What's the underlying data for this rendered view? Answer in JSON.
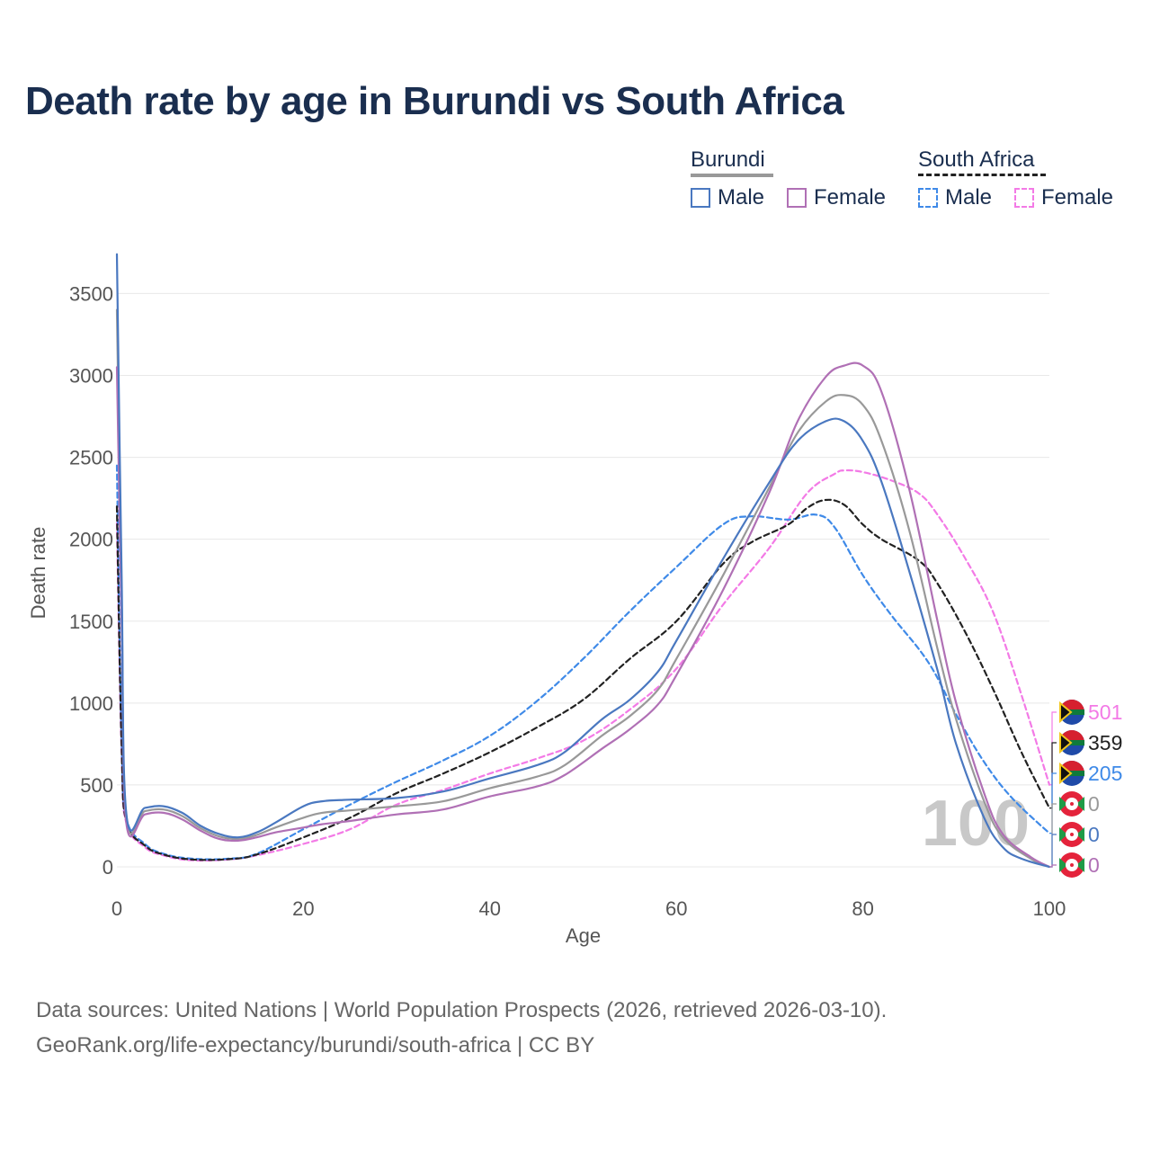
{
  "title": "Death rate by age in Burundi vs South Africa",
  "legend": {
    "groups": [
      {
        "name": "Burundi",
        "line_style": "solid",
        "color": "#999999",
        "items": [
          {
            "label": "Male",
            "color": "#4a78c0"
          },
          {
            "label": "Female",
            "color": "#b070b5"
          }
        ]
      },
      {
        "name": "South Africa",
        "line_style": "dashed",
        "color": "#222222",
        "items": [
          {
            "label": "Male",
            "color": "#3f8ae8"
          },
          {
            "label": "Female",
            "color": "#f37ae6"
          }
        ]
      }
    ]
  },
  "footer": {
    "line1": "Data sources: United Nations | World Population Prospects (2026, retrieved 2026-03-10).",
    "line2": "GeoRank.org/life-expectancy/burundi/south-africa | CC BY"
  },
  "chart_data": {
    "type": "line",
    "title": "Death rate by age in Burundi vs South Africa",
    "xlabel": "Age",
    "ylabel": "Death rate",
    "xlim": [
      0,
      100
    ],
    "ylim": [
      0,
      3700
    ],
    "xticks": [
      0,
      20,
      40,
      60,
      80,
      100
    ],
    "yticks": [
      0,
      500,
      1000,
      1500,
      2000,
      2500,
      3000,
      3500
    ],
    "grid": true,
    "year_watermark": "100",
    "series": [
      {
        "name": "Burundi Male",
        "country": "Burundi",
        "sex": "Male",
        "color": "#4a78c0",
        "dash": "solid",
        "end_label": "0",
        "x": [
          0,
          0.5,
          1,
          3,
          5,
          7,
          9,
          11,
          13,
          15,
          17,
          20,
          22,
          25,
          30,
          35,
          40,
          45,
          48,
          52,
          55,
          58,
          60,
          65,
          70,
          73,
          76,
          78,
          80,
          82,
          85,
          88,
          90,
          93,
          95,
          97,
          100
        ],
        "y": [
          3740,
          1800,
          330,
          360,
          370,
          330,
          250,
          200,
          180,
          210,
          270,
          370,
          400,
          410,
          420,
          460,
          540,
          620,
          700,
          900,
          1020,
          1190,
          1380,
          1880,
          2350,
          2600,
          2720,
          2720,
          2600,
          2350,
          1800,
          1200,
          750,
          300,
          120,
          50,
          0
        ]
      },
      {
        "name": "Burundi Female",
        "country": "Burundi",
        "sex": "Female",
        "color": "#b070b5",
        "dash": "solid",
        "end_label": "0",
        "x": [
          0,
          0.5,
          1,
          3,
          5,
          7,
          9,
          11,
          13,
          15,
          17,
          20,
          22,
          25,
          30,
          35,
          40,
          45,
          48,
          52,
          55,
          58,
          60,
          65,
          70,
          73,
          76,
          78,
          80,
          82,
          85,
          88,
          90,
          93,
          95,
          98,
          100
        ],
        "y": [
          3050,
          1500,
          270,
          320,
          330,
          290,
          220,
          170,
          160,
          180,
          210,
          240,
          260,
          280,
          320,
          350,
          430,
          490,
          560,
          720,
          840,
          990,
          1170,
          1690,
          2290,
          2720,
          2990,
          3060,
          3060,
          2900,
          2300,
          1500,
          1000,
          450,
          200,
          60,
          0
        ]
      },
      {
        "name": "Burundi Total",
        "country": "Burundi",
        "sex": "Total",
        "color": "#999999",
        "dash": "solid",
        "end_label": "0",
        "x": [
          0,
          0.5,
          1,
          3,
          5,
          7,
          9,
          11,
          13,
          15,
          17,
          20,
          22,
          25,
          30,
          35,
          40,
          45,
          48,
          52,
          55,
          58,
          60,
          65,
          70,
          73,
          76,
          78,
          80,
          82,
          85,
          88,
          90,
          93,
          95,
          98,
          100
        ],
        "y": [
          3400,
          1650,
          300,
          340,
          350,
          310,
          235,
          185,
          170,
          195,
          240,
          300,
          330,
          345,
          370,
          400,
          480,
          550,
          620,
          800,
          920,
          1080,
          1270,
          1780,
          2320,
          2650,
          2840,
          2880,
          2820,
          2600,
          2050,
          1330,
          900,
          400,
          180,
          50,
          0
        ]
      },
      {
        "name": "South Africa Male",
        "country": "South Africa",
        "sex": "Male",
        "color": "#3f8ae8",
        "dash": "dashed",
        "end_label": "205",
        "x": [
          0,
          0.5,
          1,
          3,
          5,
          8,
          12,
          15,
          20,
          25,
          30,
          35,
          40,
          45,
          50,
          55,
          60,
          65,
          68,
          72,
          75,
          77,
          80,
          83,
          87,
          90,
          93,
          96,
          100
        ],
        "y": [
          2450,
          800,
          300,
          140,
          80,
          50,
          50,
          80,
          230,
          380,
          520,
          650,
          800,
          1010,
          1270,
          1560,
          1830,
          2090,
          2140,
          2120,
          2150,
          2070,
          1780,
          1540,
          1250,
          930,
          640,
          420,
          205
        ]
      },
      {
        "name": "South Africa Female",
        "country": "South Africa",
        "sex": "Female",
        "color": "#f37ae6",
        "dash": "dashed",
        "end_label": "501",
        "x": [
          0,
          0.5,
          1,
          3,
          5,
          8,
          12,
          15,
          20,
          25,
          30,
          35,
          40,
          45,
          50,
          55,
          60,
          65,
          70,
          74,
          77,
          78,
          80,
          83,
          86,
          88,
          91,
          94,
          97,
          100
        ],
        "y": [
          2100,
          700,
          270,
          120,
          70,
          40,
          45,
          70,
          140,
          230,
          380,
          470,
          570,
          660,
          770,
          960,
          1210,
          1600,
          1950,
          2280,
          2400,
          2420,
          2410,
          2360,
          2280,
          2150,
          1880,
          1550,
          1050,
          501
        ]
      },
      {
        "name": "South Africa Total",
        "country": "South Africa",
        "sex": "Total",
        "color": "#222222",
        "dash": "dashed",
        "end_label": "359",
        "x": [
          0,
          0.5,
          1,
          3,
          5,
          8,
          12,
          15,
          20,
          25,
          30,
          35,
          40,
          45,
          50,
          55,
          60,
          65,
          68,
          72,
          74,
          76,
          78,
          80,
          82,
          86,
          88,
          91,
          94,
          97,
          100
        ],
        "y": [
          2200,
          750,
          280,
          130,
          75,
          45,
          47,
          75,
          180,
          300,
          450,
          570,
          700,
          850,
          1020,
          1270,
          1500,
          1850,
          1980,
          2090,
          2190,
          2240,
          2210,
          2090,
          2000,
          1870,
          1730,
          1430,
          1080,
          700,
          359
        ]
      }
    ]
  }
}
